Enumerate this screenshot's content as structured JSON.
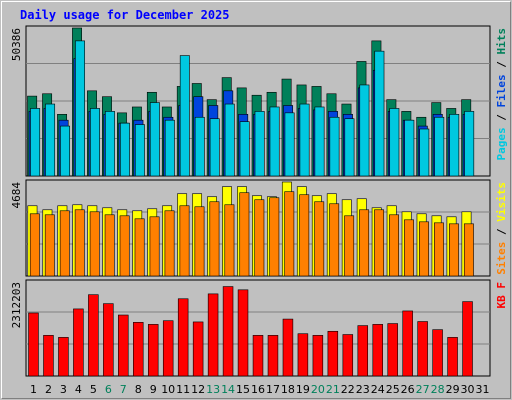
{
  "chart_data": {
    "type": "bar",
    "title": "Daily usage for December 2025",
    "days": [
      "1",
      "2",
      "3",
      "4",
      "5",
      "6",
      "7",
      "8",
      "9",
      "10",
      "11",
      "12",
      "13",
      "14",
      "15",
      "16",
      "17",
      "18",
      "19",
      "20",
      "21",
      "22",
      "23",
      "24",
      "25",
      "26",
      "27",
      "28",
      "29",
      "30",
      "31"
    ],
    "weekend_days": [
      "6",
      "7",
      "13",
      "14",
      "20",
      "21",
      "27",
      "28"
    ],
    "panels": [
      {
        "id": "hits-files-pages",
        "max_label": "50386",
        "ymax": 50386,
        "legend": [
          {
            "label": "Pages",
            "color": "#00c8e0"
          },
          {
            "label": "Files",
            "color": "#0044dd"
          },
          {
            "label": "Hits",
            "color": "#00805a"
          }
        ],
        "series": [
          {
            "name": "Hits",
            "color": "#00805a",
            "values": [
              27200,
              28000,
              21000,
              50386,
              29000,
              27000,
              21500,
              23500,
              28500,
              23500,
              30500,
              31500,
              26000,
              33500,
              30000,
              27500,
              28500,
              33000,
              31000,
              30500,
              28000,
              24500,
              39000,
              46000,
              26000,
              22000,
              20000,
              25000,
              23000,
              26000,
              null
            ]
          },
          {
            "name": "Files",
            "color": "#0044dd",
            "values": [
              22000,
              23000,
              19000,
              40000,
              22000,
              21000,
              18000,
              19000,
              22000,
              20000,
              24000,
              27000,
              24000,
              29000,
              21000,
              21000,
              22000,
              24000,
              23000,
              22500,
              22000,
              21000,
              30000,
              36000,
              22000,
              19000,
              17000,
              21000,
              20000,
              21000,
              null
            ]
          },
          {
            "name": "Pages",
            "color": "#00c8e0",
            "values": [
              23000,
              24500,
              17000,
              46000,
              23000,
              22000,
              18000,
              17500,
              25000,
              19000,
              41000,
              20000,
              19500,
              24500,
              18500,
              22000,
              23500,
              21500,
              24500,
              23500,
              20000,
              19500,
              31000,
              42500,
              23000,
              19000,
              16000,
              20000,
              21000,
              22000,
              null
            ]
          }
        ]
      },
      {
        "id": "visits-sites",
        "max_label": "4684",
        "ymax": 4684,
        "legend": [
          {
            "label": "Sites",
            "color": "#ff8000"
          },
          {
            "label": "Visits",
            "color": "#ffff00"
          }
        ],
        "series": [
          {
            "name": "Visits",
            "color": "#ffff00",
            "values": [
              3500,
              3300,
              3500,
              3550,
              3500,
              3400,
              3300,
              3250,
              3350,
              3500,
              4100,
              4100,
              3950,
              4450,
              4450,
              4000,
              3950,
              4684,
              4450,
              4000,
              4100,
              3800,
              3850,
              3400,
              3500,
              3200,
              3100,
              3000,
              2950,
              3200,
              null
            ]
          },
          {
            "name": "Sites",
            "color": "#ff8000",
            "values": [
              3100,
              3050,
              3250,
              3300,
              3200,
              3050,
              3000,
              2850,
              2950,
              3250,
              3500,
              3450,
              3700,
              3550,
              4150,
              3800,
              3900,
              4200,
              4050,
              3700,
              3600,
              3000,
              3300,
              3300,
              3050,
              2800,
              2700,
              2650,
              2600,
              2600,
              null
            ]
          }
        ]
      },
      {
        "id": "kbytes",
        "max_label": "2312203",
        "ymax": 2312203,
        "legend": [
          {
            "label": "KB F",
            "color": "#ff0000"
          }
        ],
        "series": [
          {
            "name": "KB F",
            "color": "#ff0000",
            "values": [
              1550000,
              1000000,
              950000,
              1650000,
              2000000,
              1780000,
              1500000,
              1320000,
              1270000,
              1360000,
              1900000,
              1330000,
              2020000,
              2200000,
              2120000,
              1000000,
              1000000,
              1400000,
              1040000,
              1000000,
              1100000,
              1020000,
              1240000,
              1270000,
              1290000,
              1600000,
              1340000,
              1140000,
              950000,
              1830000,
              null
            ]
          }
        ]
      }
    ]
  }
}
